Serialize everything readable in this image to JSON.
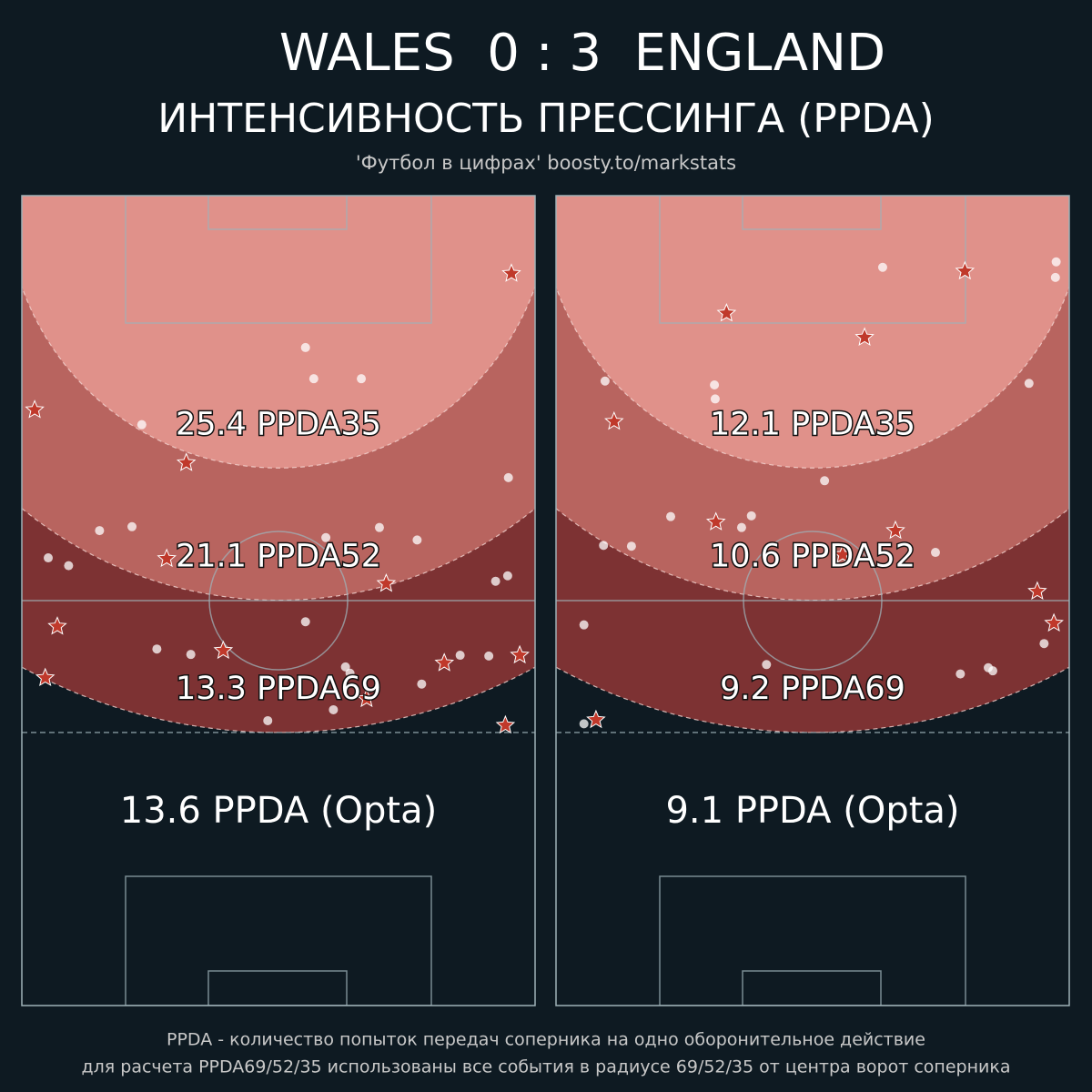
{
  "header": {
    "home_team": "WALES",
    "home_score": 0,
    "separator": ":",
    "away_score": 3,
    "away_team": "ENGLAND",
    "title": "ИНТЕНСИВНОСТЬ ПРЕССИНГА (PPDA)",
    "source": "'Футбол в цифрах' boosty.to/markstats"
  },
  "panels": [
    {
      "zones": [
        {
          "radius": 69,
          "value": 13.3,
          "label": "PPDA69",
          "color": "#7d3233"
        },
        {
          "radius": 52,
          "value": 21.1,
          "label": "PPDA52",
          "color": "#b8645f"
        },
        {
          "radius": 35,
          "value": 25.4,
          "label": "PPDA35",
          "color": "#e0918a"
        }
      ],
      "opta": {
        "value": 13.6,
        "label": "PPDA (Opta)"
      },
      "events_circle": {
        "x": [
          37.6,
          38.7,
          45.0,
          15.9,
          64.5,
          10.3,
          14.6,
          40.3,
          47.4,
          52.4,
          3.5,
          6.2,
          64.4,
          62.8,
          37.6,
          17.9,
          22.4,
          42.9,
          43.5,
          58.1,
          61.9,
          53.0,
          41.3,
          32.6
        ],
        "y": [
          19.5,
          23.5,
          23.5,
          29.4,
          36.2,
          43.0,
          42.5,
          43.9,
          42.6,
          44.2,
          46.5,
          47.5,
          48.8,
          49.5,
          54.7,
          58.2,
          58.9,
          60.5,
          61.3,
          59.0,
          59.1,
          62.7,
          66.0,
          67.4
        ]
      },
      "events_star": {
        "x": [
          64.9,
          1.7,
          21.8,
          19.2,
          48.3,
          4.7,
          26.7,
          3.1,
          56.0,
          66.0,
          45.7,
          64.1
        ],
        "y": [
          10.0,
          27.5,
          34.3,
          46.6,
          49.8,
          55.3,
          58.4,
          61.9,
          60.0,
          59.0,
          64.6,
          68.0
        ]
      }
    },
    {
      "zones": [
        {
          "radius": 69,
          "value": 9.2,
          "label": "PPDA69",
          "color": "#7d3233"
        },
        {
          "radius": 52,
          "value": 10.6,
          "label": "PPDA52",
          "color": "#b8645f"
        },
        {
          "radius": 35,
          "value": 12.1,
          "label": "PPDA35",
          "color": "#e0918a"
        }
      ],
      "opta": {
        "value": 9.1,
        "label": "PPDA (Opta)"
      },
      "events_circle": {
        "x": [
          43.3,
          66.3,
          66.2,
          6.5,
          62.7,
          21.0,
          21.1,
          35.6,
          15.2,
          25.9,
          24.6,
          6.3,
          10.0,
          50.3,
          3.7,
          64.7,
          27.9,
          53.6,
          57.3,
          57.9,
          3.7
        ],
        "y": [
          9.2,
          8.5,
          10.5,
          23.8,
          24.1,
          24.3,
          26.1,
          36.6,
          41.2,
          41.1,
          42.6,
          44.9,
          45.0,
          45.8,
          55.1,
          57.5,
          60.2,
          61.4,
          60.6,
          61.0,
          67.8
        ]
      },
      "events_star": {
        "x": [
          54.2,
          22.6,
          40.9,
          7.7,
          21.2,
          45.0,
          38.0,
          63.8,
          66.0,
          5.3
        ],
        "y": [
          9.7,
          15.1,
          18.2,
          29.0,
          41.9,
          43.0,
          46.1,
          50.8,
          54.9,
          67.3
        ]
      }
    }
  ],
  "footer": {
    "line1": "PPDA - количество попыток передач соперника на одно оборонительное действие",
    "line2": "для расчета PPDA69/52/35 использованы все события в радиусе 69/52/35 от центра ворот соперника"
  }
}
